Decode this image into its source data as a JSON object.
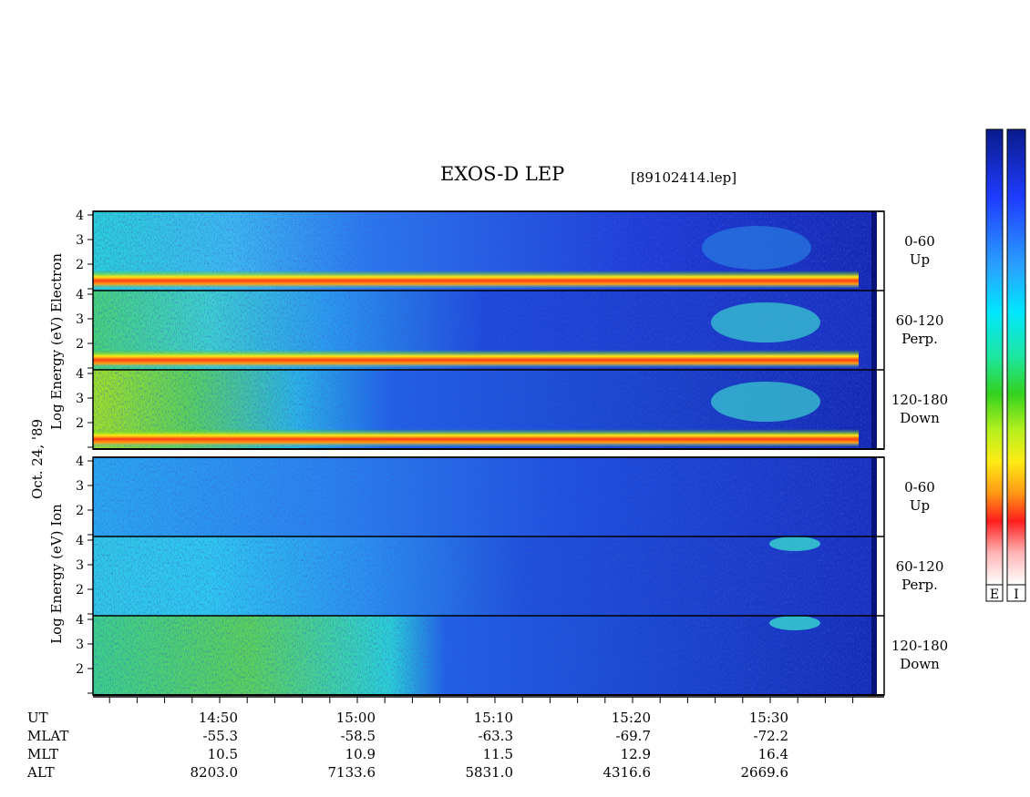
{
  "chart_data": {
    "type": "heatmap",
    "title": "EXOS-D LEP",
    "file_label": "[89102414.lep]",
    "date_label": "Oct. 24, '89",
    "groups": [
      {
        "species": "Electron",
        "ylabel": "Log Energy (eV)",
        "yticks": [
          "1",
          "2",
          "3",
          "4"
        ],
        "panels": [
          {
            "label_angle": "0-60",
            "label_dir": "Up"
          },
          {
            "label_angle": "60-120",
            "label_dir": "Perp."
          },
          {
            "label_angle": "120-180",
            "label_dir": "Down"
          }
        ]
      },
      {
        "species": "Ion",
        "ylabel": "Log Energy (eV)",
        "yticks": [
          "1",
          "2",
          "3",
          "4"
        ],
        "panels": [
          {
            "label_angle": "0-60",
            "label_dir": "Up"
          },
          {
            "label_angle": "60-120",
            "label_dir": "Perp."
          },
          {
            "label_angle": "120-180",
            "label_dir": "Down"
          }
        ]
      }
    ],
    "x_axis": {
      "rows": [
        {
          "name": "UT",
          "values": [
            "14:50",
            "15:00",
            "15:10",
            "15:20",
            "15:30"
          ]
        },
        {
          "name": "MLAT",
          "values": [
            "-55.3",
            "-58.5",
            "-63.3",
            "-69.7",
            "-72.2"
          ]
        },
        {
          "name": "MLT",
          "values": [
            "10.5",
            "10.9",
            "11.5",
            "12.9",
            "16.4"
          ]
        },
        {
          "name": "ALT",
          "values": [
            "8203.0",
            "7133.6",
            "5831.0",
            "4316.6",
            "2669.6"
          ]
        }
      ]
    },
    "colorbars": [
      {
        "label": "E"
      },
      {
        "label": "I"
      }
    ]
  },
  "colors": {
    "scale_top_to_bottom": [
      "#0a1a8c",
      "#1e3cff",
      "#2aa0ff",
      "#00e6ff",
      "#1ee6a0",
      "#32d21e",
      "#b4f01e",
      "#ffeb14",
      "#ff9614",
      "#ff1e1e",
      "#ffb4b4",
      "#ffffff"
    ]
  }
}
